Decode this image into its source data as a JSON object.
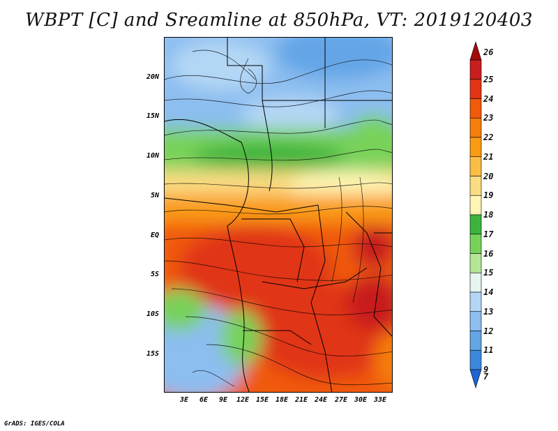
{
  "title": "WBPT [C] and Sreamline at 850hPa, VT: 2019120403",
  "footer": "GrADS: IGES/COLA",
  "map": {
    "lat_labels": [
      "20N",
      "15N",
      "10N",
      "5N",
      "EQ",
      "5S",
      "10S",
      "15S"
    ],
    "lat_values": [
      20,
      15,
      10,
      5,
      0,
      -5,
      -10,
      -15
    ],
    "lat_range": [
      -20,
      25
    ],
    "lon_labels": [
      "3E",
      "6E",
      "9E",
      "12E",
      "15E",
      "18E",
      "21E",
      "24E",
      "27E",
      "30E",
      "33E"
    ],
    "lon_values": [
      3,
      6,
      9,
      12,
      15,
      18,
      21,
      24,
      27,
      30,
      33
    ],
    "lon_range": [
      0,
      35
    ]
  },
  "colorbar": {
    "labels": [
      "26",
      "25",
      "24",
      "23",
      "22",
      "21",
      "20",
      "19",
      "18",
      "17",
      "16",
      "15",
      "14",
      "13",
      "12",
      "11",
      "9",
      "7"
    ],
    "colors": [
      "#a50a0a",
      "#c81e1e",
      "#e03414",
      "#f05a0a",
      "#f57d0a",
      "#fa9b14",
      "#fabe46",
      "#fadc82",
      "#fff5b4",
      "#3cb43c",
      "#78d25a",
      "#b4e696",
      "#e6f5f0",
      "#b4d7f5",
      "#8cbef0",
      "#64a5e6",
      "#3c87dc",
      "#1e64d2"
    ]
  }
}
